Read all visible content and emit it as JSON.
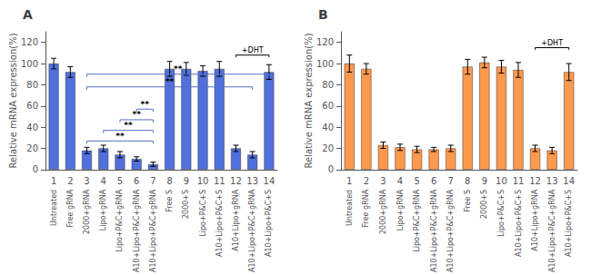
{
  "chart_data": [
    {
      "type": "bar",
      "title": "A",
      "categories": [
        "1",
        "2",
        "3",
        "4",
        "5",
        "6",
        "7",
        "8",
        "9",
        "10",
        "11",
        "12",
        "13",
        "14"
      ],
      "x_annotations": [
        "Untreated",
        "Free gRNA",
        "2000+gRNA",
        "Lipo+gRNA",
        "Lipo+P&C+gRNA",
        "A10+Lipo+P&C+gRNA",
        "A10+Lipo+P&C+gRNA",
        "Free S",
        "2000+S",
        "Lipo+P&C+S",
        "A10+Lipo+P&C+S",
        "A10+Lipo+gRNA",
        "A10+Lipo+P&C+gRNA",
        "A10+Lipo+P&C+S"
      ],
      "values": [
        100,
        92,
        18,
        20,
        14,
        10,
        5,
        95,
        95,
        93,
        95,
        20,
        14,
        92
      ],
      "errors": [
        5,
        5,
        3,
        3,
        3,
        2,
        2,
        7,
        6,
        5,
        7,
        3,
        3,
        7
      ],
      "ylabel": "Relative mRNA expression(%)",
      "ylim": [
        0,
        130
      ],
      "yticks": [
        0,
        20,
        40,
        60,
        80,
        100,
        120
      ],
      "grid": false,
      "brackets": [
        {
          "from": "3",
          "to": "7",
          "y": 27,
          "label": "**"
        },
        {
          "from": "4",
          "to": "7",
          "y": 37,
          "label": "**"
        },
        {
          "from": "5",
          "to": "7",
          "y": 47,
          "label": "**"
        },
        {
          "from": "6",
          "to": "7",
          "y": 57,
          "label": "**"
        },
        {
          "from": "3",
          "to": "13",
          "y": 78,
          "label": "**"
        },
        {
          "from": "3",
          "to": "14",
          "y": 90,
          "label": "**"
        }
      ],
      "annotations": [
        {
          "text": "+DHT",
          "from": "12",
          "to": "14",
          "y": 108
        }
      ]
    },
    {
      "type": "bar",
      "title": "B",
      "categories": [
        "1",
        "2",
        "3",
        "4",
        "5",
        "6",
        "7",
        "8",
        "9",
        "10",
        "11",
        "12",
        "13",
        "14"
      ],
      "x_annotations": [
        "Untreated",
        "Free gRNA",
        "2000+gRNA",
        "Lipo+gRNA",
        "Lipo+P&C+gRNA",
        "A10+Lipo+P&C+gRNA",
        "A10+Lipo+P&C+gRNA",
        "Free S",
        "2000+S",
        "Lipo+P&C+S",
        "A10+Lipo+P&C+S",
        "A10+Lipo+gRNA",
        "A10+Lipo+P&C+gRNA",
        "A10+Lipo+P&C+S"
      ],
      "values": [
        100,
        95,
        23,
        21,
        19,
        19,
        20,
        97,
        101,
        97,
        94,
        20,
        18,
        92
      ],
      "errors": [
        8,
        5,
        3,
        3,
        3,
        2,
        3,
        7,
        5,
        6,
        7,
        3,
        3,
        8
      ],
      "ylabel": "Relative mRNA expression(%)",
      "ylim": [
        0,
        130
      ],
      "yticks": [
        0,
        20,
        40,
        60,
        80,
        100,
        120
      ],
      "grid": false,
      "annotations": [
        {
          "text": "+DHT",
          "from": "12",
          "to": "14",
          "y": 115
        }
      ]
    }
  ]
}
